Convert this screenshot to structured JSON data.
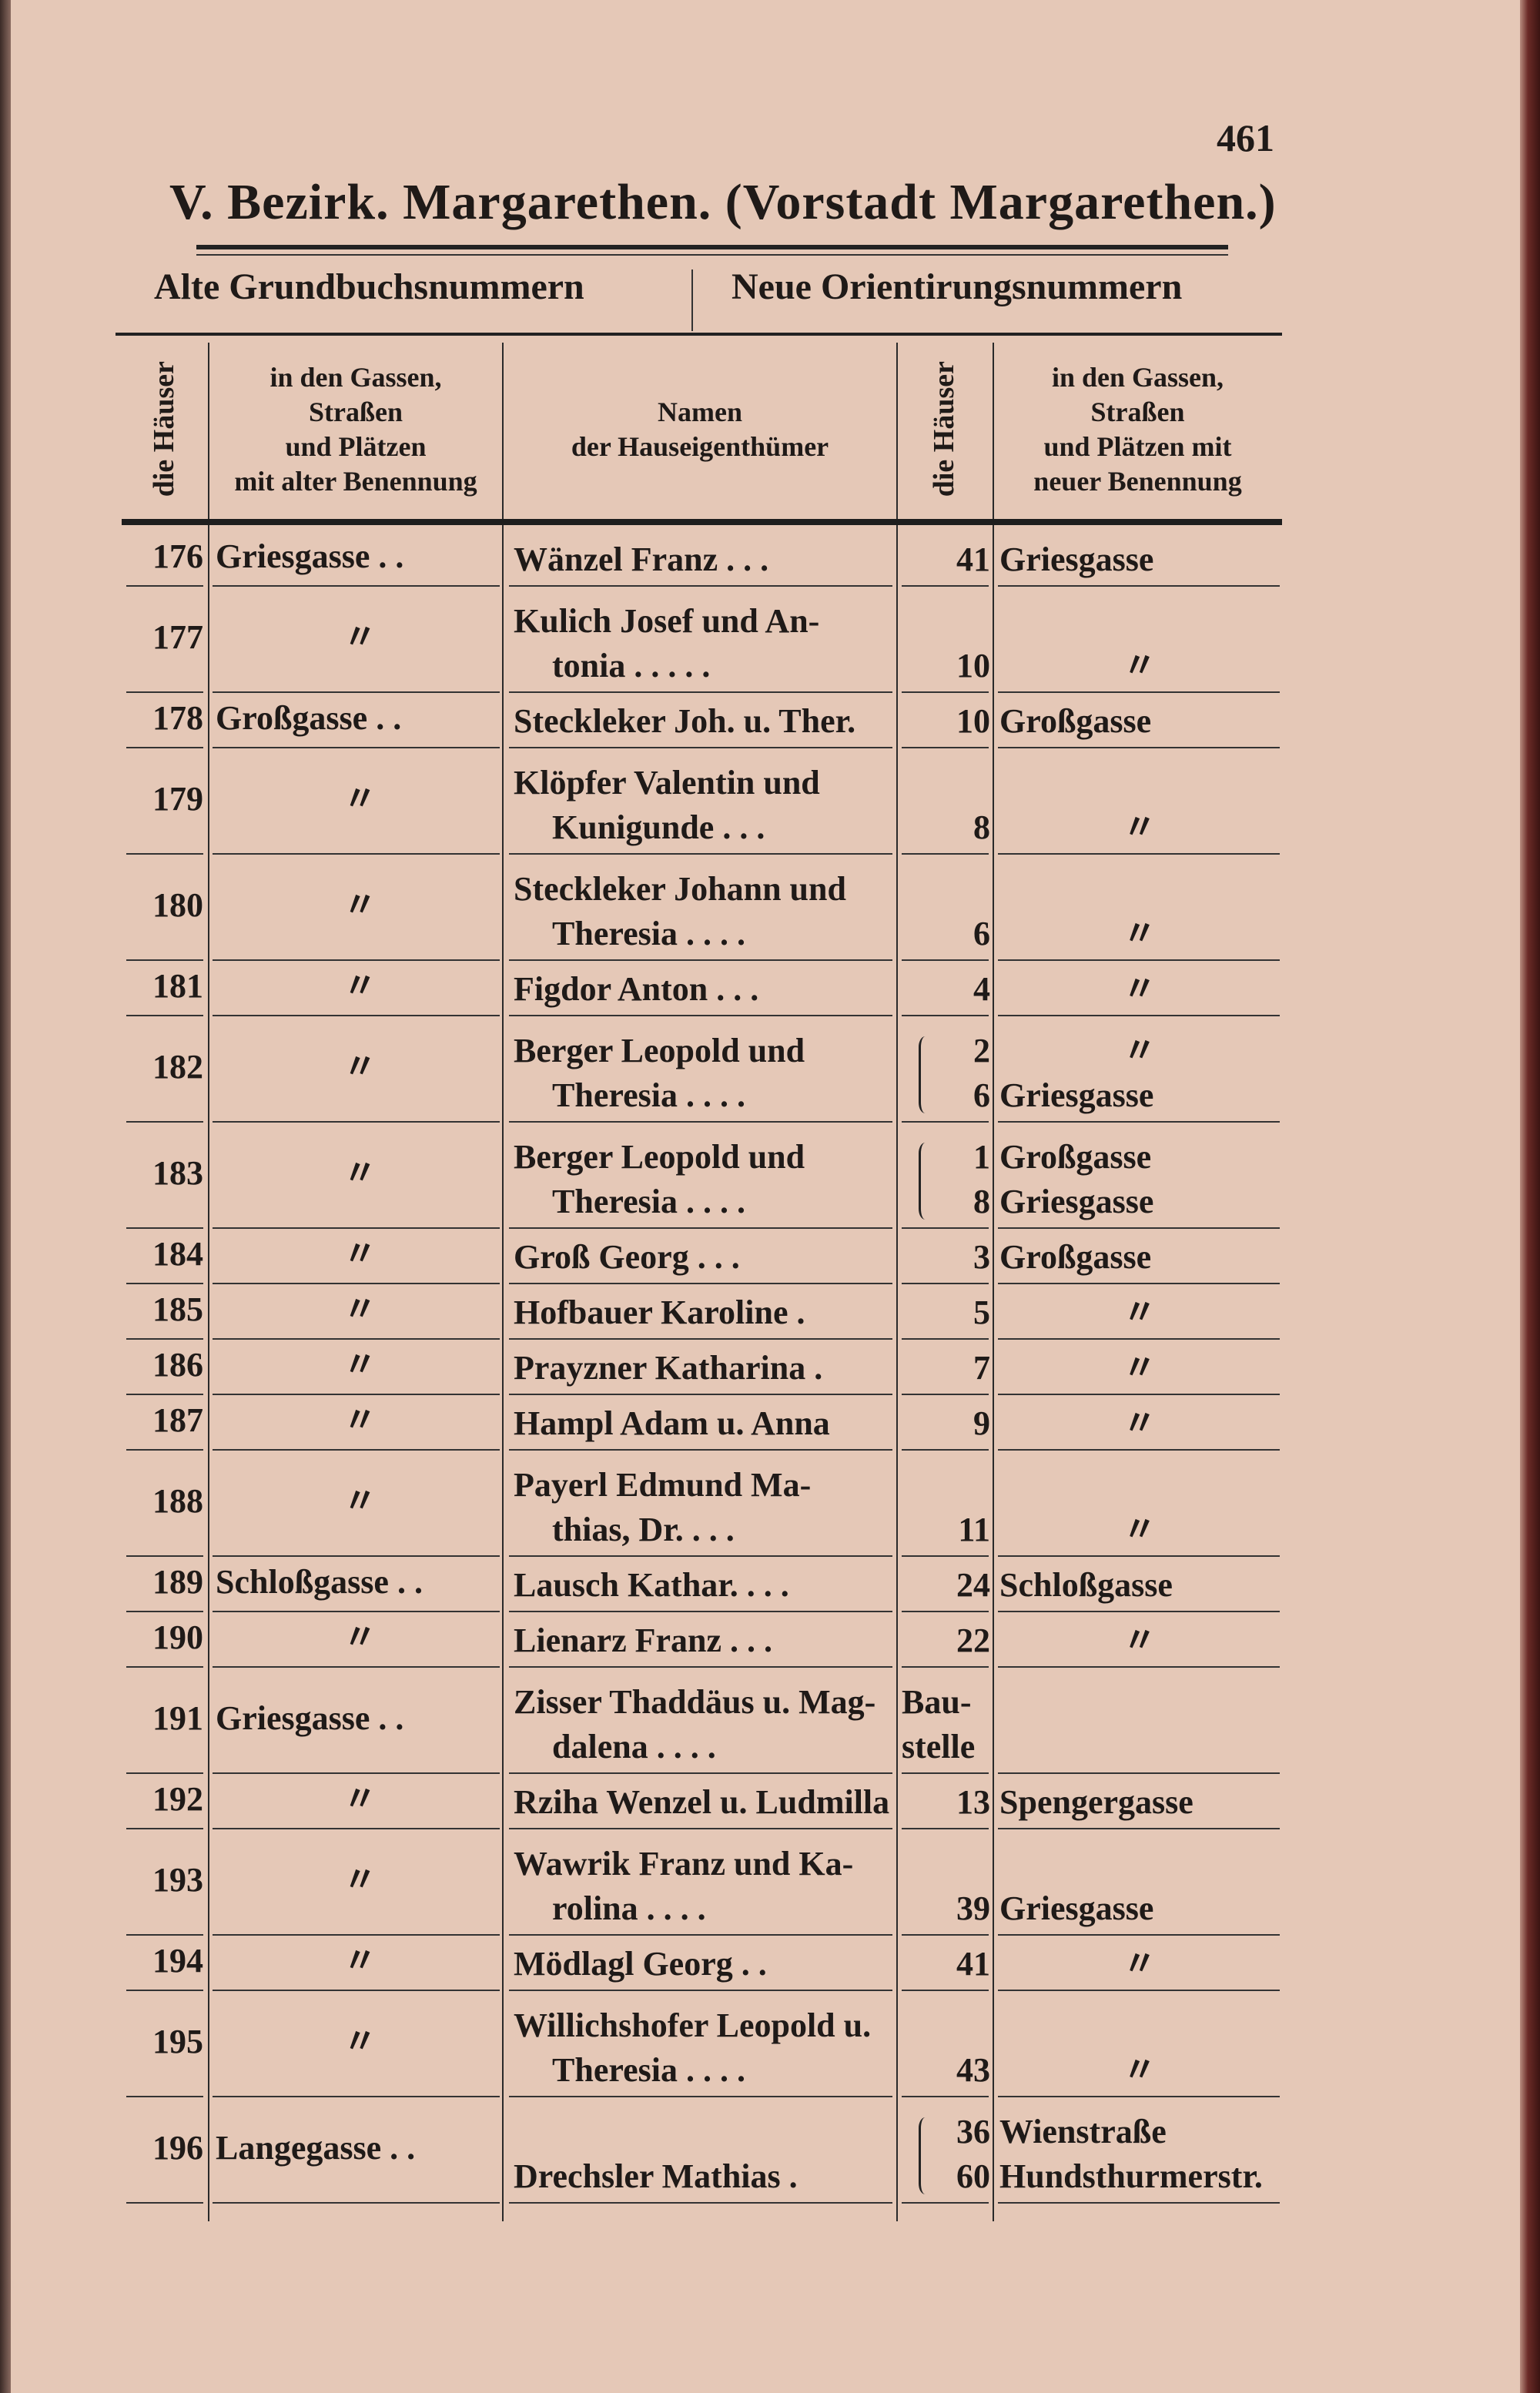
{
  "page_number": "461",
  "title": "V. Bezirk. Margarethen. (Vorstadt Margarethen.)",
  "sections": {
    "old": "Alte Grundbuchsnummern",
    "new": "Neue Orientirungsnummern"
  },
  "columns": {
    "old_houses": "die Häuser",
    "old_streets": [
      "in den Gassen,",
      "Straßen",
      "und Plätzen",
      "mit alter Benennung"
    ],
    "owners": [
      "Namen",
      "der Hauseigenthümer"
    ],
    "new_houses": "die Häuser",
    "new_streets": [
      "in den Gassen,",
      "Straßen",
      "und Plätzen mit",
      "neuer Benennung"
    ]
  },
  "rows": [
    {
      "no": "176",
      "old": "Griesgasse . .",
      "name": [
        "Wänzel Franz . . ."
      ],
      "num": [
        "41"
      ],
      "new": [
        "Griesgasse"
      ]
    },
    {
      "no": "177",
      "old": "〃",
      "name": [
        "Kulich Josef und An-",
        "tonia . . . . ."
      ],
      "num": [
        "10"
      ],
      "new": [
        "〃"
      ]
    },
    {
      "no": "178",
      "old": "Großgasse . .",
      "name": [
        "Steckleker Joh. u. Ther."
      ],
      "num": [
        "10"
      ],
      "new": [
        "Großgasse"
      ]
    },
    {
      "no": "179",
      "old": "〃",
      "name": [
        "Klöpfer Valentin und",
        "Kunigunde . . ."
      ],
      "num": [
        "8"
      ],
      "new": [
        "〃"
      ]
    },
    {
      "no": "180",
      "old": "〃",
      "name": [
        "Steckleker Johann und",
        "Theresia . . . ."
      ],
      "num": [
        "6"
      ],
      "new": [
        "〃"
      ]
    },
    {
      "no": "181",
      "old": "〃",
      "name": [
        "Figdor Anton . . ."
      ],
      "num": [
        "4"
      ],
      "new": [
        "〃"
      ]
    },
    {
      "no": "182",
      "old": "〃",
      "name": [
        "Berger Leopold und",
        "Theresia . . . ."
      ],
      "num": [
        "2",
        "6"
      ],
      "new": [
        "〃",
        "Griesgasse"
      ]
    },
    {
      "no": "183",
      "old": "〃",
      "name": [
        "Berger Leopold und",
        "Theresia . . . ."
      ],
      "num": [
        "1",
        "8"
      ],
      "new": [
        "Großgasse",
        "Griesgasse"
      ]
    },
    {
      "no": "184",
      "old": "〃",
      "name": [
        "Groß Georg . . ."
      ],
      "num": [
        "3"
      ],
      "new": [
        "Großgasse"
      ]
    },
    {
      "no": "185",
      "old": "〃",
      "name": [
        "Hofbauer Karoline ."
      ],
      "num": [
        "5"
      ],
      "new": [
        "〃"
      ]
    },
    {
      "no": "186",
      "old": "〃",
      "name": [
        "Prayzner Katharina ."
      ],
      "num": [
        "7"
      ],
      "new": [
        "〃"
      ]
    },
    {
      "no": "187",
      "old": "〃",
      "name": [
        "Hampl Adam u. Anna"
      ],
      "num": [
        "9"
      ],
      "new": [
        "〃"
      ]
    },
    {
      "no": "188",
      "old": "〃",
      "name": [
        "Payerl Edmund Ma-",
        "thias, Dr. . . ."
      ],
      "num": [
        "11"
      ],
      "new": [
        "〃"
      ]
    },
    {
      "no": "189",
      "old": "Schloßgasse . .",
      "name": [
        "Lausch Kathar. . . ."
      ],
      "num": [
        "24"
      ],
      "new": [
        "Schloßgasse"
      ]
    },
    {
      "no": "190",
      "old": "〃",
      "name": [
        "Lienarz Franz . . ."
      ],
      "num": [
        "22"
      ],
      "new": [
        "〃"
      ]
    },
    {
      "no": "191",
      "old": "Griesgasse . .",
      "name": [
        "Zisser Thaddäus u. Mag-",
        "dalena . . . ."
      ],
      "num": [
        "Bau-",
        "stelle"
      ],
      "new": []
    },
    {
      "no": "192",
      "old": "〃",
      "name": [
        "Rziha Wenzel u. Ludmilla"
      ],
      "num": [
        "13"
      ],
      "new": [
        "Spengergasse"
      ]
    },
    {
      "no": "193",
      "old": "〃",
      "name": [
        "Wawrik Franz und Ka-",
        "rolina . . . ."
      ],
      "num": [
        "39"
      ],
      "new": [
        "Griesgasse"
      ]
    },
    {
      "no": "194",
      "old": "〃",
      "name": [
        "Mödlagl Georg . ."
      ],
      "num": [
        "41"
      ],
      "new": [
        "〃"
      ]
    },
    {
      "no": "195",
      "old": "〃",
      "name": [
        "Willichshofer Leopold u.",
        "Theresia . . . ."
      ],
      "num": [
        "43"
      ],
      "new": [
        "〃"
      ]
    },
    {
      "no": "196",
      "old": "Langegasse . .",
      "name": [
        "Drechsler Mathias ."
      ],
      "num": [
        "36",
        "60"
      ],
      "new": [
        "Wienstraße",
        "Hundsthurmerstr."
      ]
    }
  ]
}
